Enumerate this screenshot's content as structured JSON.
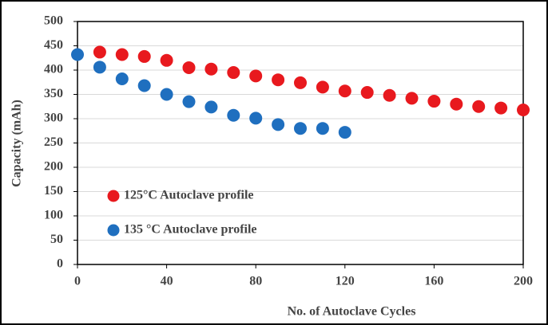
{
  "chart_data": {
    "type": "scatter",
    "xlabel": "No. of Autoclave  Cycles",
    "ylabel": "Capacity  (mAh)",
    "xlim": [
      0,
      200
    ],
    "xticks": [
      0,
      40,
      80,
      120,
      160,
      200
    ],
    "ylim": [
      0,
      500
    ],
    "yticks": [
      0,
      50,
      100,
      150,
      200,
      250,
      300,
      350,
      400,
      450,
      500
    ],
    "grid": true,
    "legend": "left",
    "series": [
      {
        "name": "125°C  Autoclave profile",
        "color": "#e8191e",
        "x": [
          10,
          20,
          30,
          40,
          50,
          60,
          70,
          80,
          90,
          100,
          110,
          120,
          130,
          140,
          150,
          160,
          170,
          180,
          190,
          200
        ],
        "values": [
          437,
          432,
          428,
          420,
          405,
          402,
          395,
          388,
          380,
          374,
          365,
          357,
          354,
          348,
          342,
          336,
          330,
          325,
          322,
          318
        ]
      },
      {
        "name": "135 °C  Autoclave profile",
        "color": "#1f6fbf",
        "x": [
          0,
          10,
          20,
          30,
          40,
          50,
          60,
          70,
          80,
          90,
          100,
          110,
          120
        ],
        "values": [
          432,
          406,
          382,
          368,
          350,
          335,
          324,
          307,
          301,
          288,
          280,
          280,
          272
        ]
      }
    ]
  }
}
